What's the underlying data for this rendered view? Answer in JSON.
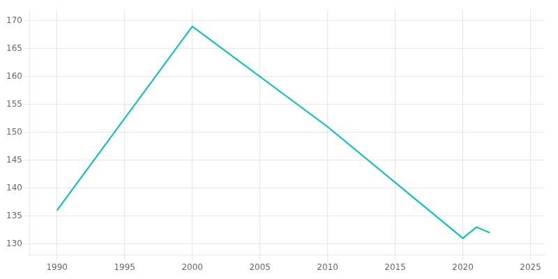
{
  "chart_data": {
    "type": "line",
    "x": [
      1990,
      2000,
      2010,
      2020,
      2021,
      2022
    ],
    "values": [
      136,
      169,
      151,
      131,
      133,
      132
    ],
    "color": "#00BEBE",
    "xlim": [
      1988,
      2026
    ],
    "ylim": [
      128,
      172
    ],
    "xticks": [
      1990,
      1995,
      2000,
      2005,
      2010,
      2015,
      2020,
      2025
    ],
    "yticks": [
      130,
      135,
      140,
      145,
      150,
      155,
      160,
      165,
      170
    ],
    "grid": true
  }
}
